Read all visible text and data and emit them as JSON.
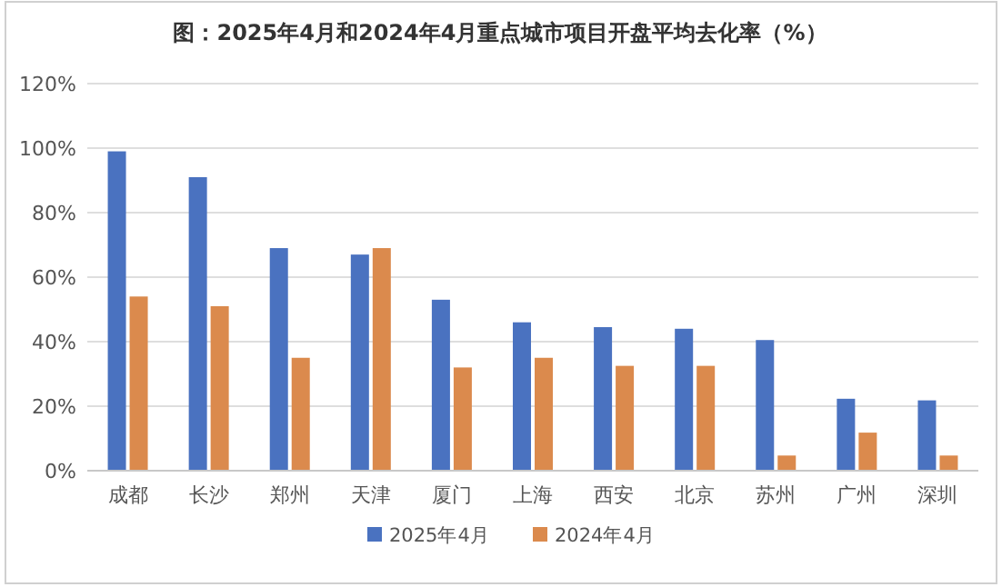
{
  "chart_data": {
    "type": "bar",
    "title": "图：2025年4月和2024年4月重点城市项目开盘平均去化率（%）",
    "categories": [
      "成都",
      "长沙",
      "郑州",
      "天津",
      "厦门",
      "上海",
      "西安",
      "北京",
      "苏州",
      "广州",
      "深圳"
    ],
    "series": [
      {
        "name": "2025年4月",
        "color": "#4a72c0",
        "values": [
          99,
          91,
          69,
          67,
          53,
          46,
          44.5,
          44,
          40.5,
          22.3,
          21.8
        ]
      },
      {
        "name": "2024年4月",
        "color": "#db8a4d",
        "values": [
          54,
          51,
          35,
          69,
          32,
          35,
          32.5,
          32.5,
          4.7,
          11.8,
          4.7
        ]
      }
    ],
    "ylim": [
      0,
      120
    ],
    "yticks": [
      {
        "value": 0,
        "label": "0%"
      },
      {
        "value": 20,
        "label": "20%"
      },
      {
        "value": 40,
        "label": "40%"
      },
      {
        "value": 60,
        "label": "60%"
      },
      {
        "value": 80,
        "label": "80%"
      },
      {
        "value": 100,
        "label": "100%"
      },
      {
        "value": 120,
        "label": "120%"
      }
    ],
    "grid": "y",
    "legend": "bottom"
  }
}
